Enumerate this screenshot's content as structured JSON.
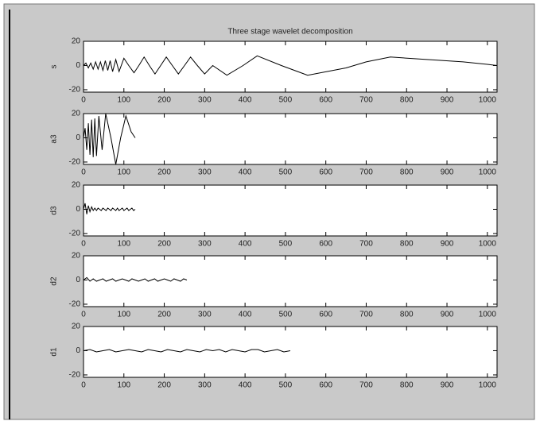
{
  "chart_data": [
    {
      "type": "line",
      "title": "Three stage wavelet decomposition",
      "ylabel": "s",
      "x": [
        0,
        6,
        12,
        18,
        24,
        30,
        36,
        42,
        48,
        54,
        60,
        66,
        72,
        80,
        88,
        100,
        112,
        125,
        137,
        150,
        163,
        177,
        191,
        205,
        220,
        235,
        250,
        265,
        282,
        300,
        320,
        355,
        395,
        430,
        490,
        555,
        650,
        700,
        760,
        850,
        940,
        1000,
        1024
      ],
      "values": [
        0,
        2,
        -2,
        2,
        -3,
        3,
        -3,
        3,
        -4,
        4,
        -4,
        4,
        -5,
        5,
        -5,
        6,
        0,
        -6,
        0,
        7,
        0,
        -7,
        0,
        7,
        0,
        -7,
        0,
        7,
        0,
        -7,
        0,
        -8,
        0,
        8,
        0,
        -8,
        -2,
        3,
        7,
        5,
        3,
        1,
        0
      ],
      "xlim": [
        0,
        1024
      ],
      "ylim": [
        -22,
        20
      ],
      "xticks": [
        0,
        100,
        200,
        300,
        400,
        500,
        600,
        700,
        800,
        900,
        1000
      ],
      "yticks": [
        -20,
        0,
        20
      ],
      "color": "#000000"
    },
    {
      "type": "line",
      "ylabel": "a3",
      "x": [
        0,
        4,
        8,
        12,
        16,
        20,
        24,
        28,
        32,
        38,
        46,
        55,
        68,
        80,
        92,
        105,
        118,
        128
      ],
      "values": [
        0,
        8,
        -10,
        12,
        -14,
        15,
        -16,
        16,
        -15,
        18,
        -10,
        20,
        0,
        -22,
        0,
        18,
        5,
        0
      ],
      "xlim": [
        0,
        1024
      ],
      "ylim": [
        -22,
        20
      ],
      "xticks": [
        0,
        100,
        200,
        300,
        400,
        500,
        600,
        700,
        800,
        900,
        1000
      ],
      "yticks": [
        -20,
        0,
        20
      ],
      "color": "#000000"
    },
    {
      "type": "line",
      "ylabel": "d3",
      "x": [
        0,
        4,
        8,
        12,
        16,
        20,
        24,
        28,
        32,
        36,
        40,
        44,
        48,
        52,
        56,
        60,
        64,
        68,
        72,
        76,
        80,
        84,
        88,
        92,
        96,
        100,
        104,
        108,
        112,
        116,
        120,
        124,
        128
      ],
      "values": [
        0,
        5,
        -4,
        3,
        -2,
        2,
        -1,
        1,
        -1,
        1,
        0,
        -1,
        1,
        0,
        -1,
        1,
        0,
        -1,
        1,
        0,
        -1,
        1,
        -1,
        0,
        1,
        -1,
        0,
        1,
        -1,
        0,
        1,
        -1,
        0
      ],
      "xlim": [
        0,
        1024
      ],
      "ylim": [
        -22,
        20
      ],
      "xticks": [
        0,
        100,
        200,
        300,
        400,
        500,
        600,
        700,
        800,
        900,
        1000
      ],
      "yticks": [
        -20,
        0,
        20
      ],
      "color": "#000000"
    },
    {
      "type": "line",
      "ylabel": "d2",
      "x": [
        0,
        8,
        16,
        24,
        32,
        40,
        48,
        56,
        64,
        72,
        80,
        88,
        96,
        104,
        112,
        120,
        128,
        136,
        144,
        152,
        160,
        168,
        176,
        184,
        192,
        200,
        208,
        216,
        224,
        232,
        240,
        248,
        256
      ],
      "values": [
        0,
        2,
        -1,
        1,
        -1,
        0,
        1,
        -1,
        0,
        1,
        -1,
        0,
        1,
        0,
        -1,
        1,
        0,
        -1,
        0,
        1,
        -1,
        0,
        1,
        -1,
        0,
        1,
        0,
        -1,
        1,
        0,
        -1,
        1,
        0
      ],
      "xlim": [
        0,
        1024
      ],
      "ylim": [
        -22,
        20
      ],
      "xticks": [
        0,
        100,
        200,
        300,
        400,
        500,
        600,
        700,
        800,
        900,
        1000
      ],
      "yticks": [
        -20,
        0,
        20
      ],
      "color": "#000000"
    },
    {
      "type": "line",
      "ylabel": "d1",
      "x": [
        0,
        16,
        32,
        48,
        64,
        80,
        96,
        112,
        128,
        144,
        160,
        176,
        192,
        208,
        224,
        240,
        256,
        272,
        288,
        304,
        320,
        336,
        352,
        368,
        384,
        400,
        416,
        432,
        448,
        464,
        480,
        496,
        512
      ],
      "values": [
        0,
        1,
        -1,
        0,
        1,
        -1,
        0,
        1,
        0,
        -1,
        1,
        0,
        -1,
        1,
        0,
        -1,
        1,
        0,
        -1,
        1,
        0,
        1,
        -1,
        1,
        0,
        -1,
        1,
        1,
        -1,
        0,
        1,
        -1,
        0
      ],
      "xlim": [
        0,
        1024
      ],
      "ylim": [
        -22,
        20
      ],
      "xticks": [
        0,
        100,
        200,
        300,
        400,
        500,
        600,
        700,
        800,
        900,
        1000
      ],
      "yticks": [
        -20,
        0,
        20
      ],
      "color": "#000000"
    }
  ]
}
